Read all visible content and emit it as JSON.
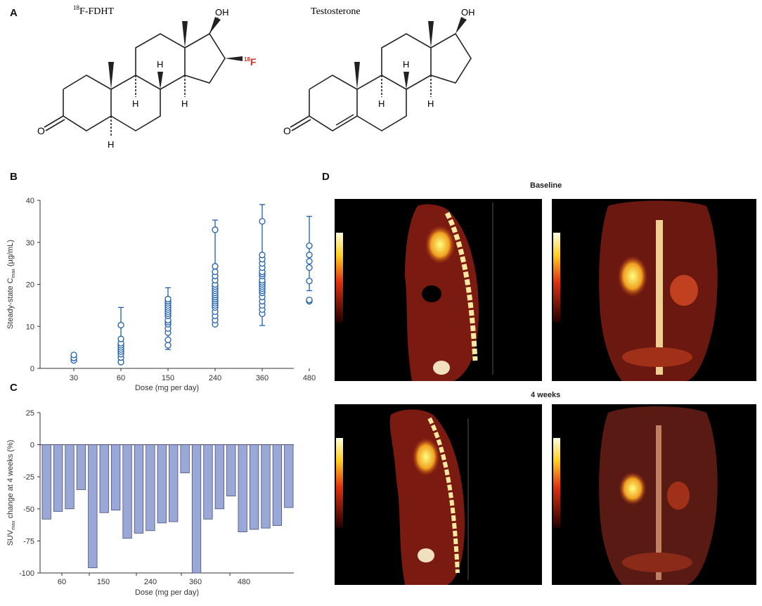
{
  "panels": {
    "a": "A",
    "b": "B",
    "c": "C",
    "d": "D"
  },
  "molecules": {
    "left_name_sup": "18",
    "left_name": "F-FDHT",
    "right_name": "Testosterone",
    "oh": "OH",
    "h": "H",
    "o": "O",
    "f_sup": "18",
    "f": "F"
  },
  "pet": {
    "baseline_title": "Baseline",
    "week4_title": "4 weeks"
  },
  "colors": {
    "fluorine": "#d9312a",
    "scatter": "#1f5fb0",
    "bar_fill": "#9aa8d8",
    "bar_stroke": "#4a4f7a"
  },
  "chart_data": [
    {
      "id": "B",
      "type": "scatter",
      "xlabel": "Dose (mg per day)",
      "ylabel_pre": "Steady-state C",
      "ylabel_sub": "max",
      "ylabel_post": " (µg/mL)",
      "categories": [
        "30",
        "60",
        "150",
        "240",
        "360",
        "480"
      ],
      "ylim": [
        0,
        40
      ],
      "yticks": [
        0,
        10,
        20,
        30,
        40
      ],
      "points": [
        [
          1.9,
          2.5,
          3.2
        ],
        [
          1.5,
          2.6,
          3.4,
          4.0,
          4.5,
          5.0,
          5.5,
          6.0,
          7.0,
          10.3
        ],
        [
          5.5,
          6.8,
          8.5,
          9.5,
          10.5,
          11.0,
          11.5,
          12.5,
          13.0,
          13.5,
          14.0,
          14.5,
          15.0,
          15.5,
          16.0,
          16.5
        ],
        [
          10.5,
          11.5,
          12.5,
          13.5,
          14.5,
          15.0,
          15.5,
          16.0,
          16.5,
          17.0,
          17.5,
          18.0,
          18.5,
          19.0,
          19.5,
          20.0,
          21.0,
          22.0,
          23.0,
          24.3,
          33.0
        ],
        [
          13.0,
          14.0,
          15.0,
          16.0,
          17.0,
          18.0,
          18.5,
          19.0,
          19.5,
          20.0,
          20.5,
          21.0,
          22.0,
          22.5,
          23.0,
          24.0,
          25.0,
          26.0,
          27.0,
          35.0
        ],
        [
          16.0,
          16.3,
          20.8,
          24.0,
          25.5,
          27.0,
          29.2
        ]
      ],
      "errorbars": [
        {
          "mean": 2.5,
          "lo": 1.9,
          "hi": 3.2
        },
        {
          "mean": 5.3,
          "lo": 2.0,
          "hi": 14.5
        },
        {
          "mean": 11.8,
          "lo": 4.5,
          "hi": 19.2
        },
        {
          "mean": 17.2,
          "lo": 10.5,
          "hi": 35.3
        },
        {
          "mean": 19.8,
          "lo": 10.2,
          "hi": 39.0
        },
        {
          "mean": 24.2,
          "lo": 18.5,
          "hi": 36.2
        }
      ]
    },
    {
      "id": "C",
      "type": "bar",
      "xlabel": "Dose (mg per day)",
      "ylabel_pre": "SUV",
      "ylabel_sub": "max",
      "ylabel_post": " change at 4 weeks (%)",
      "ylim": [
        -100,
        25
      ],
      "yticks": [
        25,
        0,
        -25,
        -50,
        -75,
        -100
      ],
      "xtick_labels": [
        "60",
        "150",
        "240",
        "360",
        "480"
      ],
      "values": [
        -58,
        -52,
        -50,
        -35,
        -96,
        -53,
        -51,
        -73,
        -69,
        -67,
        -61,
        -60,
        -22,
        -100,
        -58,
        -50,
        -40,
        -68,
        -66,
        -65,
        -63,
        -49
      ]
    }
  ]
}
